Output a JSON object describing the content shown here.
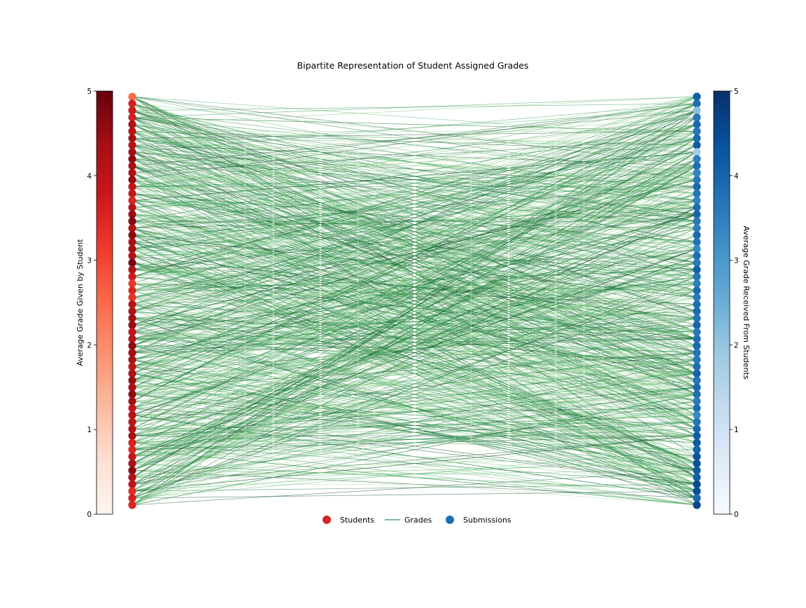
{
  "chart_data": {
    "type": "bipartite",
    "title": "Bipartite Representation of Student Assigned Grades",
    "left_colorbar": {
      "label": "Average Grade Given by Student",
      "colormap": "Reds",
      "range": [
        0,
        5
      ],
      "ticks": [
        "0",
        "1",
        "2",
        "3",
        "4",
        "5"
      ]
    },
    "right_colorbar": {
      "label": "Average Grade Received From Students",
      "colormap": "Blues",
      "range": [
        0,
        5
      ],
      "ticks": [
        "0",
        "1",
        "2",
        "3",
        "4",
        "5"
      ]
    },
    "legend": {
      "placement": "bottom-center",
      "entries": [
        {
          "label": "Students",
          "kind": "node",
          "color": "#d62728"
        },
        {
          "label": "Grades",
          "kind": "edge",
          "color": "#2e8b57"
        },
        {
          "label": "Submissions",
          "kind": "node",
          "color": "#1f6fb4"
        }
      ]
    },
    "students": {
      "count": 60,
      "avg_grade_given": [
        2.5,
        3.6,
        3.7,
        3.6,
        4.2,
        4.0,
        4.3,
        4.1,
        4.4,
        4.6,
        4.3,
        4.2,
        4.5,
        3.9,
        3.8,
        3.5,
        4.1,
        4.5,
        4.7,
        4.2,
        4.6,
        4.3,
        4.4,
        4.1,
        4.8,
        4.2,
        3.7,
        3.2,
        3.5,
        3.3,
        4.0,
        4.2,
        4.4,
        4.5,
        3.9,
        4.1,
        4.6,
        4.4,
        4.3,
        4.0,
        4.2,
        4.5,
        4.3,
        4.6,
        4.4,
        3.8,
        4.1,
        4.0,
        4.2,
        4.3,
        3.6,
        3.5,
        3.9,
        4.3,
        4.6,
        4.2,
        4.0,
        3.4,
        3.6,
        3.5
      ]
    },
    "submissions": {
      "count": 60,
      "avg_grade_received": [
        4.1,
        3.8,
        2.1,
        3.6,
        3.9,
        3.7,
        3.9,
        4.2,
        1.8,
        3.5,
        3.8,
        3.4,
        3.6,
        3.9,
        3.7,
        3.4,
        3.8,
        4.0,
        3.6,
        3.5,
        3.9,
        3.7,
        3.3,
        3.8,
        3.6,
        4.1,
        3.7,
        3.5,
        3.9,
        3.6,
        3.8,
        3.9,
        3.7,
        4.0,
        3.6,
        3.8,
        3.9,
        3.7,
        3.6,
        3.8,
        4.0,
        3.7,
        3.9,
        3.8,
        3.6,
        3.8,
        3.3,
        3.7,
        3.9,
        4.1,
        4.2,
        4.0,
        4.3,
        4.4,
        4.2,
        4.1,
        4.5,
        4.4,
        3.9,
        4.6
      ]
    }
  }
}
